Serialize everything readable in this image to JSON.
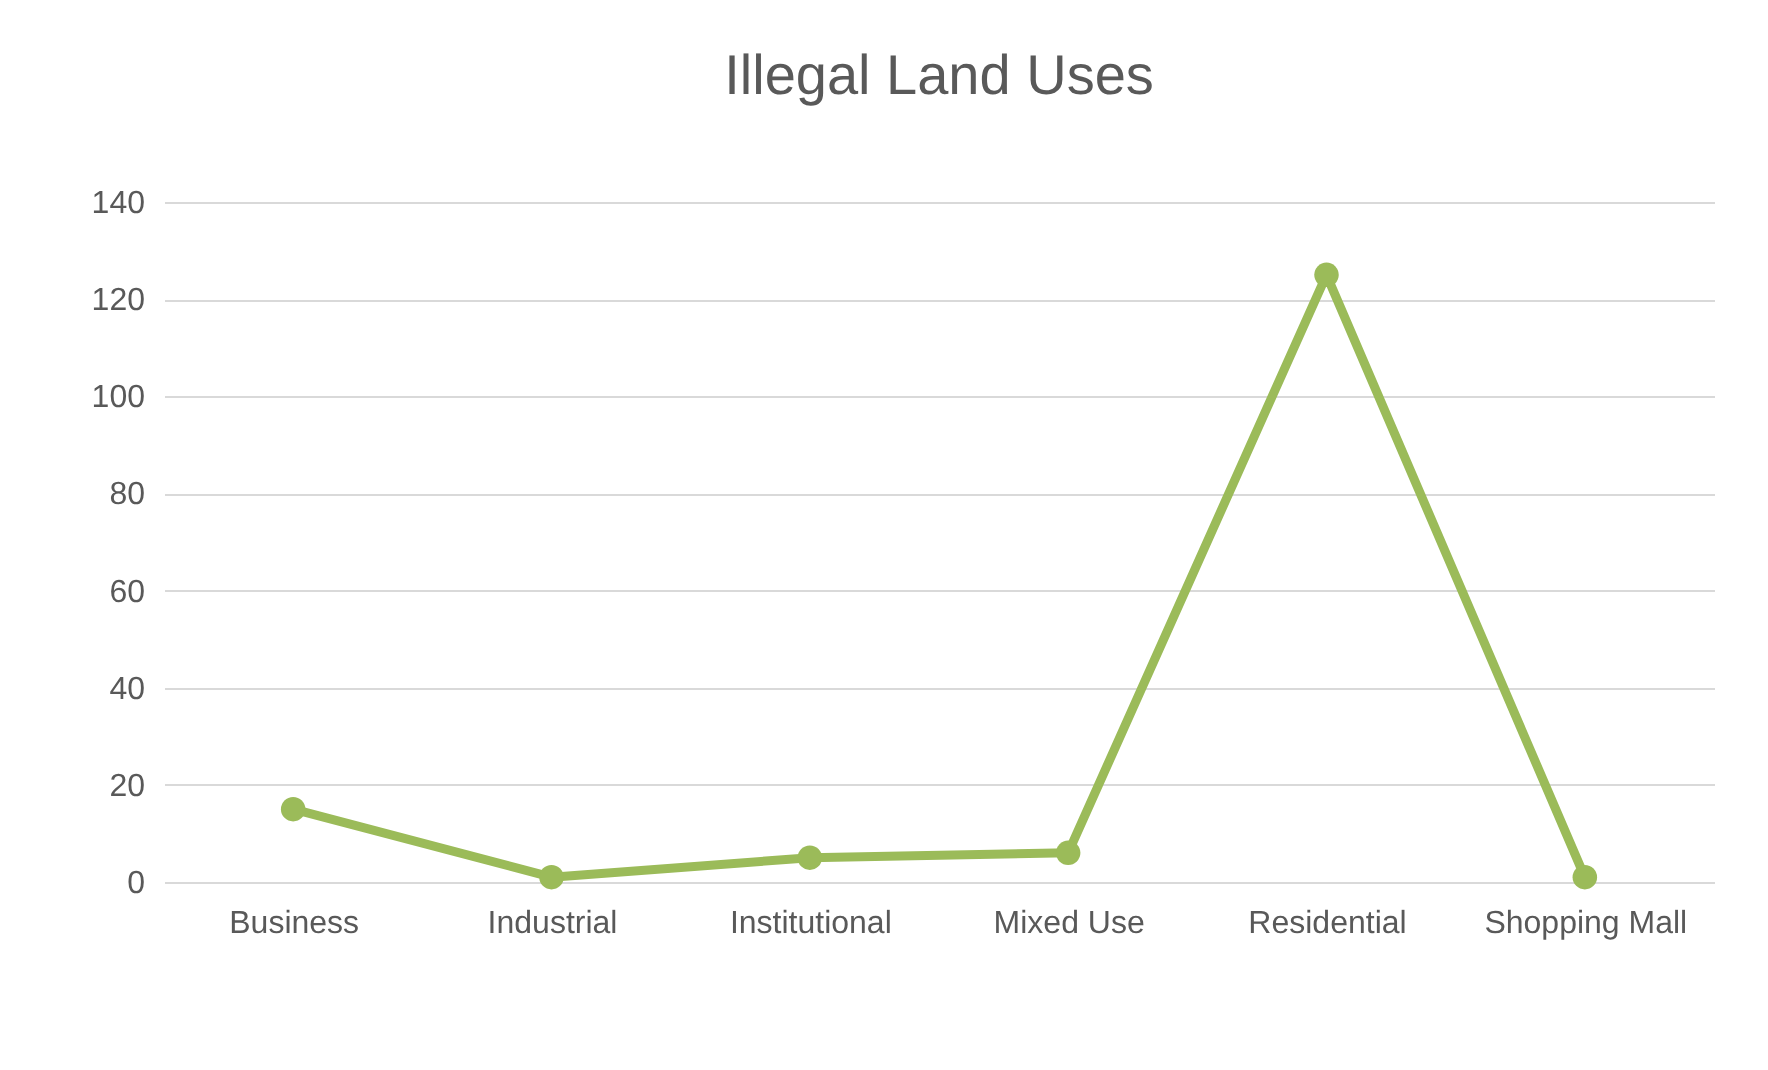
{
  "chart_data": {
    "type": "line",
    "title": "Illegal Land Uses",
    "categories": [
      "Business",
      "Industrial",
      "Institutional",
      "Mixed Use",
      "Residential",
      "Shopping Mall"
    ],
    "series": [
      {
        "color": "#9bbb59",
        "values": [
          15,
          1,
          5,
          6,
          125,
          1
        ]
      }
    ],
    "ylim": [
      0,
      140
    ],
    "yticks": [
      0,
      20,
      40,
      60,
      80,
      100,
      120,
      140
    ],
    "grid": "y",
    "marker": "circle",
    "line_style": "solid"
  }
}
